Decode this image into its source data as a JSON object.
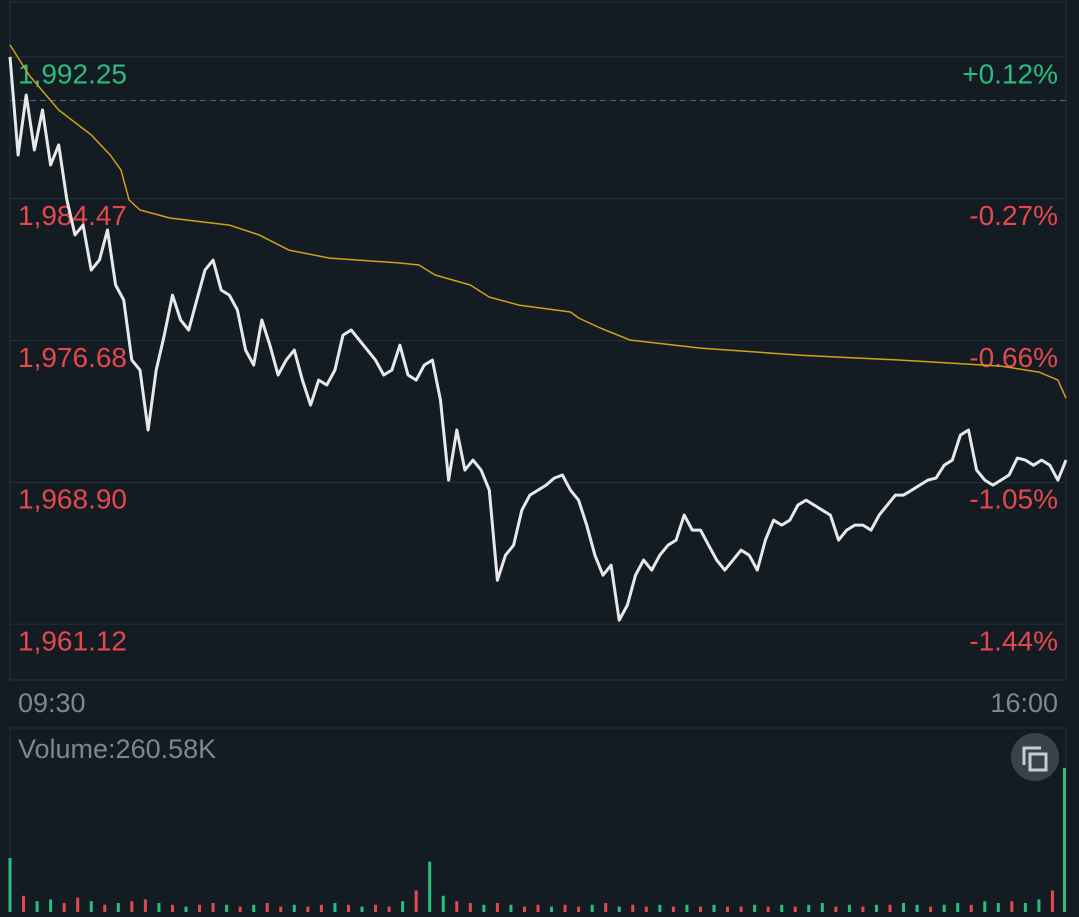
{
  "chart_data": [
    {
      "type": "line",
      "reference_line": 1989.86,
      "ylim": [
        1958.05,
        1993.18
      ],
      "yticks": [
        {
          "value": 1992.25,
          "label": "1,992.25"
        },
        {
          "value": 1984.47,
          "label": "1,984.47"
        },
        {
          "value": 1976.68,
          "label": "1,976.68"
        },
        {
          "value": 1968.9,
          "label": "1,968.90"
        },
        {
          "value": 1961.12,
          "label": "1,961.12"
        }
      ],
      "y2lim": [
        -1.594,
        0.167
      ],
      "y2ticks": [
        {
          "value": 0.12,
          "label": "+0.12%"
        },
        {
          "value": -0.27,
          "label": "-0.27%"
        },
        {
          "value": -0.66,
          "label": "-0.66%"
        },
        {
          "value": -1.05,
          "label": "-1.05%"
        },
        {
          "value": -1.44,
          "label": "-1.44%"
        }
      ],
      "up_color": "#2bbd7e",
      "down_color": "#e5484d",
      "xlim": [
        0,
        390
      ],
      "xticks": [
        {
          "value": 0,
          "label": "09:30"
        },
        {
          "value": 390,
          "label": "16:00"
        }
      ],
      "series": [
        {
          "color": "#e8e8e8",
          "x": [
            0,
            3,
            6,
            9,
            12,
            15,
            18,
            21,
            24,
            27,
            30,
            33,
            36,
            39,
            42,
            45,
            48,
            51,
            54,
            57,
            60,
            63,
            66,
            69,
            72,
            75,
            78,
            81,
            84,
            87,
            90,
            93,
            96,
            99,
            102,
            105,
            108,
            111,
            114,
            117,
            120,
            123,
            126,
            129,
            132,
            135,
            138,
            141,
            144,
            147,
            150,
            153,
            156,
            159,
            162,
            165,
            168,
            171,
            174,
            177,
            180,
            183,
            186,
            189,
            192,
            195,
            198,
            201,
            204,
            207,
            210,
            213,
            216,
            219,
            222,
            225,
            228,
            231,
            234,
            237,
            240,
            243,
            246,
            249,
            252,
            255,
            258,
            261,
            264,
            267,
            270,
            273,
            276,
            279,
            282,
            285,
            288,
            291,
            294,
            297,
            300,
            303,
            306,
            309,
            312,
            315,
            318,
            321,
            324,
            327,
            330,
            333,
            336,
            339,
            342,
            345,
            348,
            351,
            354,
            357,
            360,
            363,
            366,
            369,
            372,
            375,
            378,
            381,
            384,
            387,
            390
          ],
          "values": [
            1992.25,
            1986.87,
            1990.16,
            1987.14,
            1989.34,
            1986.32,
            1987.42,
            1984.4,
            1982.48,
            1983.02,
            1980.55,
            1981.1,
            1982.75,
            1979.73,
            1978.91,
            1975.61,
            1975.06,
            1971.77,
            1975.06,
            1976.98,
            1979.18,
            1977.81,
            1977.26,
            1978.91,
            1980.55,
            1981.1,
            1979.45,
            1979.18,
            1978.36,
            1976.16,
            1975.34,
            1977.81,
            1976.43,
            1974.79,
            1975.61,
            1976.16,
            1974.51,
            1973.14,
            1974.51,
            1974.24,
            1975.06,
            1976.98,
            1977.26,
            1976.71,
            1976.16,
            1975.61,
            1974.79,
            1975.06,
            1976.43,
            1974.79,
            1974.51,
            1975.34,
            1975.61,
            1973.41,
            1969.02,
            1971.77,
            1969.57,
            1970.12,
            1969.57,
            1968.47,
            1963.53,
            1964.9,
            1965.45,
            1967.37,
            1968.2,
            1968.47,
            1968.75,
            1969.13,
            1969.3,
            1968.47,
            1967.92,
            1966.55,
            1964.9,
            1963.8,
            1964.35,
            1961.33,
            1962.16,
            1963.8,
            1964.63,
            1964.08,
            1964.9,
            1965.45,
            1965.73,
            1967.1,
            1966.28,
            1966.28,
            1965.45,
            1964.63,
            1964.08,
            1964.63,
            1965.18,
            1964.9,
            1964.08,
            1965.73,
            1966.82,
            1966.55,
            1966.82,
            1967.65,
            1967.92,
            1967.65,
            1967.37,
            1967.1,
            1965.73,
            1966.28,
            1966.55,
            1966.55,
            1966.28,
            1967.1,
            1967.65,
            1968.2,
            1968.2,
            1968.47,
            1968.75,
            1969.02,
            1969.13,
            1969.84,
            1970.12,
            1971.49,
            1971.77,
            1969.57,
            1969.02,
            1968.75,
            1969.02,
            1969.3,
            1970.23,
            1970.12,
            1969.84,
            1970.12,
            1969.84,
            1969.02,
            1970.12
          ]
        },
        {
          "color": "#d4a017",
          "x": [
            0,
            7,
            18,
            30,
            37,
            41,
            44,
            48,
            59,
            81,
            92,
            103,
            118,
            144,
            151,
            157,
            170,
            177,
            188,
            207,
            210,
            218,
            229,
            255,
            292,
            329,
            366,
            380,
            387,
            390
          ],
          "values": [
            1992.91,
            1991.26,
            1989.34,
            1987.97,
            1986.87,
            1986.04,
            1984.4,
            1983.85,
            1983.41,
            1983.02,
            1982.48,
            1981.65,
            1981.21,
            1980.94,
            1980.83,
            1980.28,
            1979.73,
            1979.07,
            1978.63,
            1978.25,
            1977.92,
            1977.37,
            1976.71,
            1976.27,
            1975.88,
            1975.61,
            1975.28,
            1974.95,
            1974.51,
            1973.52
          ]
        }
      ]
    },
    {
      "type": "bar",
      "label": "Volume:260.58K",
      "ylim": [
        0,
        100
      ],
      "xlim": [
        0,
        390
      ],
      "up_color": "#2bbd7e",
      "down_color": "#e5484d",
      "x": [
        0,
        5,
        10,
        15,
        20,
        25,
        30,
        35,
        40,
        45,
        50,
        55,
        60,
        65,
        70,
        75,
        80,
        85,
        90,
        95,
        100,
        105,
        110,
        115,
        120,
        125,
        130,
        135,
        140,
        145,
        150,
        155,
        160,
        165,
        170,
        175,
        180,
        185,
        190,
        195,
        200,
        205,
        210,
        215,
        220,
        225,
        230,
        235,
        240,
        245,
        250,
        255,
        260,
        265,
        270,
        275,
        280,
        285,
        290,
        295,
        300,
        305,
        310,
        315,
        320,
        325,
        330,
        335,
        340,
        345,
        350,
        355,
        360,
        365,
        370,
        375,
        380,
        385,
        390
      ],
      "values": [
        30,
        9,
        6,
        7,
        5,
        8,
        6,
        4,
        5,
        6,
        7,
        5,
        4,
        3,
        4,
        5,
        4,
        3,
        4,
        5,
        3,
        4,
        3,
        4,
        5,
        4,
        3,
        4,
        3,
        6,
        12,
        28,
        9,
        6,
        5,
        4,
        5,
        4,
        3,
        4,
        3,
        4,
        3,
        4,
        5,
        3,
        4,
        3,
        4,
        3,
        4,
        3,
        4,
        3,
        3,
        4,
        3,
        4,
        3,
        4,
        5,
        3,
        4,
        3,
        4,
        4,
        5,
        4,
        3,
        4,
        5,
        4,
        6,
        5,
        6,
        5,
        7,
        12,
        80
      ],
      "up": [
        true,
        false,
        true,
        true,
        false,
        false,
        true,
        false,
        true,
        false,
        false,
        true,
        false,
        true,
        false,
        false,
        true,
        false,
        true,
        false,
        false,
        true,
        false,
        false,
        true,
        false,
        true,
        false,
        false,
        true,
        false,
        true,
        true,
        false,
        false,
        true,
        false,
        true,
        false,
        false,
        true,
        false,
        false,
        true,
        false,
        true,
        false,
        false,
        true,
        false,
        true,
        false,
        true,
        false,
        false,
        true,
        false,
        true,
        false,
        true,
        true,
        false,
        true,
        false,
        true,
        false,
        true,
        true,
        false,
        true,
        true,
        false,
        true,
        true,
        false,
        true,
        true,
        false,
        true
      ]
    }
  ]
}
